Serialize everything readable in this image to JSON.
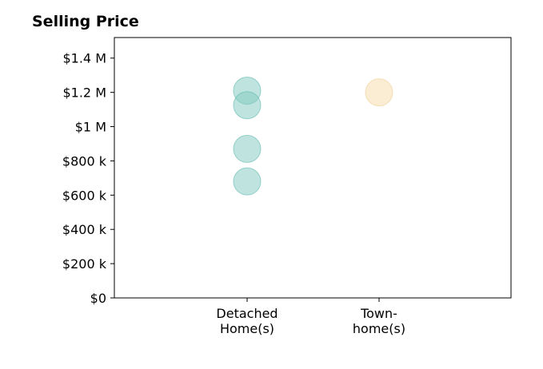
{
  "chart_data": {
    "type": "scatter",
    "title": "Selling Price",
    "xlabel": "",
    "ylabel": "",
    "categories": [
      [
        "Detached",
        "Home(s)"
      ],
      [
        "Town-",
        "home(s)"
      ]
    ],
    "ylim": [
      0,
      1520000
    ],
    "yticks": [
      0,
      200000,
      400000,
      600000,
      800000,
      1000000,
      1200000,
      1400000
    ],
    "ytick_labels": [
      "$0",
      "$200 k",
      "$400 k",
      "$600 k",
      "$800 k",
      "$1 M",
      "$1.2 M",
      "$1.4 M"
    ],
    "grid": false,
    "series": [
      {
        "category_index": 0,
        "color": "#7fc9c0",
        "stroke": "#5fb8ad",
        "values": [
          1210000,
          1125000,
          870000,
          680000
        ]
      },
      {
        "category_index": 1,
        "color": "#f5dcaa",
        "stroke": "#eecf93",
        "values": [
          1200000
        ]
      }
    ]
  }
}
